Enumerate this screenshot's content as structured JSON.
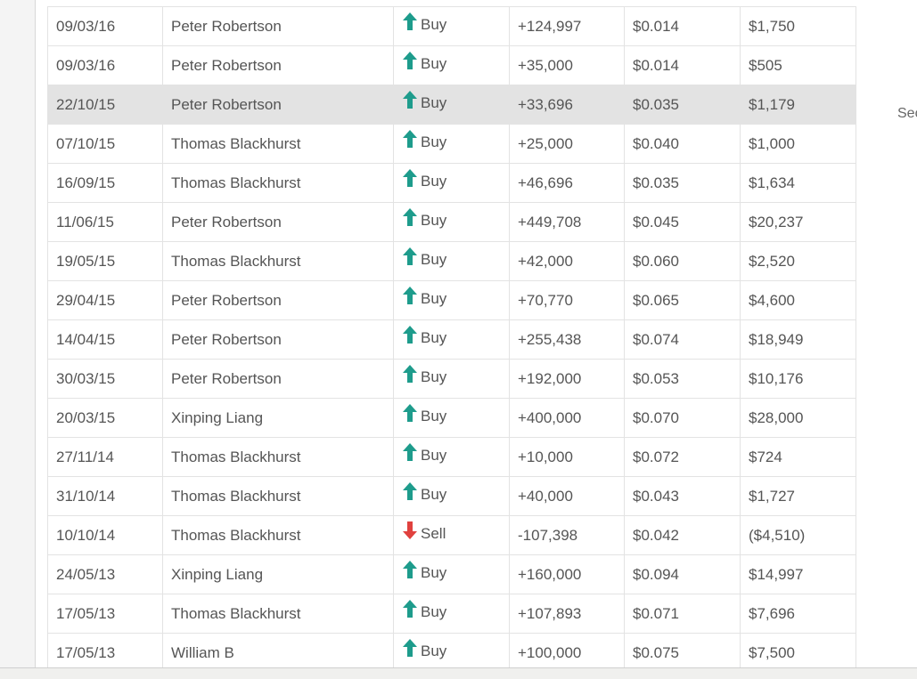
{
  "side_text": "Sec",
  "colors": {
    "buy": "#1e9c8c",
    "sell": "#e0413e",
    "highlight_row": "#e3e3e3"
  },
  "icons": {
    "buy": "up-arrow-icon",
    "sell": "down-arrow-icon"
  },
  "rows": [
    {
      "date": "09/03/16",
      "name": "Peter Robertson",
      "type": "Buy",
      "shares": "+124,997",
      "price": "$0.014",
      "value": "$1,750"
    },
    {
      "date": "09/03/16",
      "name": "Peter Robertson",
      "type": "Buy",
      "shares": "+35,000",
      "price": "$0.014",
      "value": "$505"
    },
    {
      "date": "22/10/15",
      "name": "Peter Robertson",
      "type": "Buy",
      "shares": "+33,696",
      "price": "$0.035",
      "value": "$1,179",
      "highlighted": true
    },
    {
      "date": "07/10/15",
      "name": "Thomas Blackhurst",
      "type": "Buy",
      "shares": "+25,000",
      "price": "$0.040",
      "value": "$1,000"
    },
    {
      "date": "16/09/15",
      "name": "Thomas Blackhurst",
      "type": "Buy",
      "shares": "+46,696",
      "price": "$0.035",
      "value": "$1,634"
    },
    {
      "date": "11/06/15",
      "name": "Peter Robertson",
      "type": "Buy",
      "shares": "+449,708",
      "price": "$0.045",
      "value": "$20,237"
    },
    {
      "date": "19/05/15",
      "name": "Thomas Blackhurst",
      "type": "Buy",
      "shares": "+42,000",
      "price": "$0.060",
      "value": "$2,520"
    },
    {
      "date": "29/04/15",
      "name": "Peter Robertson",
      "type": "Buy",
      "shares": "+70,770",
      "price": "$0.065",
      "value": "$4,600"
    },
    {
      "date": "14/04/15",
      "name": "Peter Robertson",
      "type": "Buy",
      "shares": "+255,438",
      "price": "$0.074",
      "value": "$18,949"
    },
    {
      "date": "30/03/15",
      "name": "Peter Robertson",
      "type": "Buy",
      "shares": "+192,000",
      "price": "$0.053",
      "value": "$10,176"
    },
    {
      "date": "20/03/15",
      "name": "Xinping Liang",
      "type": "Buy",
      "shares": "+400,000",
      "price": "$0.070",
      "value": "$28,000"
    },
    {
      "date": "27/11/14",
      "name": "Thomas Blackhurst",
      "type": "Buy",
      "shares": "+10,000",
      "price": "$0.072",
      "value": "$724"
    },
    {
      "date": "31/10/14",
      "name": "Thomas Blackhurst",
      "type": "Buy",
      "shares": "+40,000",
      "price": "$0.043",
      "value": "$1,727"
    },
    {
      "date": "10/10/14",
      "name": "Thomas Blackhurst",
      "type": "Sell",
      "shares": "-107,398",
      "price": "$0.042",
      "value": "($4,510)"
    },
    {
      "date": "24/05/13",
      "name": "Xinping Liang",
      "type": "Buy",
      "shares": "+160,000",
      "price": "$0.094",
      "value": "$14,997"
    },
    {
      "date": "17/05/13",
      "name": "Thomas Blackhurst",
      "type": "Buy",
      "shares": "+107,893",
      "price": "$0.071",
      "value": "$7,696"
    },
    {
      "date": "17/05/13",
      "name": "William B",
      "type": "Buy",
      "shares": "+100,000",
      "price": "$0.075",
      "value": "$7,500"
    }
  ]
}
